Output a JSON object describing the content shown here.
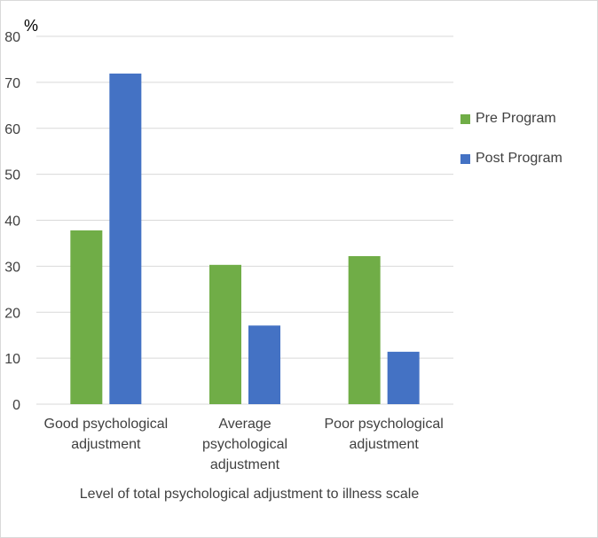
{
  "chart_data": {
    "type": "bar",
    "title": "",
    "y_unit_label": "%",
    "xlabel": "Level of total psychological adjustment to illness scale",
    "ylabel": "%",
    "ylim": [
      0,
      80
    ],
    "yticks": [
      0,
      10,
      20,
      30,
      40,
      50,
      60,
      70,
      80
    ],
    "grid": true,
    "legend_position": "right",
    "categories": [
      "Good psychological adjustment",
      "Average psychological adjustment",
      "Poor psychological adjustment"
    ],
    "category_lines": [
      [
        "Good psychological",
        "adjustment"
      ],
      [
        "Average",
        "psychological",
        "adjustment"
      ],
      [
        "Poor psychological",
        "adjustment"
      ]
    ],
    "series": [
      {
        "name": "Pre Program",
        "color": "#70ad47",
        "values": [
          37.8,
          30.3,
          32.2
        ]
      },
      {
        "name": "Post Program",
        "color": "#4472c4",
        "values": [
          71.9,
          17.1,
          11.4
        ]
      }
    ]
  }
}
